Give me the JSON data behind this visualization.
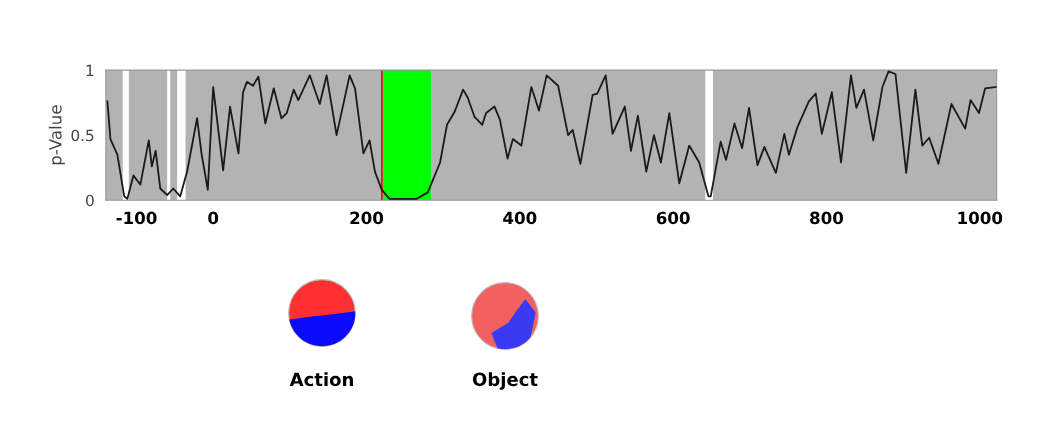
{
  "chart_data": {
    "type": "line",
    "ylabel": "p-Value",
    "xlim": [
      -140,
      1022
    ],
    "ylim": [
      0,
      1
    ],
    "xticks": [
      -100,
      0,
      200,
      400,
      600,
      800,
      1000
    ],
    "yticks": [
      0,
      0.5,
      1
    ],
    "grid": false,
    "legend": false,
    "series": [
      {
        "color": "#1a1a1a",
        "x": [
          -138,
          -134,
          -125,
          -116,
          -112,
          -104,
          -95,
          -84,
          -80,
          -75,
          -69,
          -60,
          -52,
          -43,
          -34,
          -21,
          -15,
          -7,
          0,
          13,
          22,
          33,
          39,
          44,
          52,
          59,
          68,
          79,
          89,
          96,
          105,
          111,
          126,
          139,
          148,
          161,
          178,
          185,
          196,
          204,
          211,
          220,
          230,
          265,
          280,
          296,
          305,
          315,
          326,
          332,
          341,
          351,
          356,
          367,
          374,
          384,
          391,
          402,
          415,
          425,
          435,
          450,
          463,
          469,
          479,
          495,
          501,
          512,
          521,
          537,
          545,
          554,
          565,
          575,
          584,
          595,
          608,
          621,
          634,
          646,
          649,
          662,
          669,
          680,
          690,
          699,
          710,
          719,
          734,
          745,
          751,
          762,
          777,
          786,
          794,
          807,
          819,
          832,
          839,
          849,
          861,
          873,
          881,
          890,
          904,
          916,
          925,
          934,
          946,
          963,
          981,
          988,
          999,
          1007,
          1021
        ],
        "values": [
          0.76,
          0.47,
          0.35,
          0.03,
          0.01,
          0.19,
          0.12,
          0.46,
          0.26,
          0.38,
          0.09,
          0.04,
          0.09,
          0.03,
          0.22,
          0.63,
          0.35,
          0.08,
          0.87,
          0.23,
          0.72,
          0.36,
          0.83,
          0.91,
          0.88,
          0.95,
          0.59,
          0.86,
          0.63,
          0.67,
          0.85,
          0.77,
          0.96,
          0.74,
          0.96,
          0.5,
          0.96,
          0.86,
          0.36,
          0.46,
          0.22,
          0.08,
          0.01,
          0.01,
          0.06,
          0.29,
          0.58,
          0.68,
          0.85,
          0.79,
          0.64,
          0.58,
          0.67,
          0.72,
          0.62,
          0.32,
          0.47,
          0.42,
          0.87,
          0.69,
          0.96,
          0.88,
          0.5,
          0.54,
          0.28,
          0.81,
          0.82,
          0.96,
          0.51,
          0.72,
          0.38,
          0.65,
          0.22,
          0.5,
          0.29,
          0.67,
          0.13,
          0.42,
          0.29,
          0.03,
          0.03,
          0.45,
          0.31,
          0.59,
          0.4,
          0.71,
          0.27,
          0.41,
          0.21,
          0.51,
          0.35,
          0.56,
          0.76,
          0.82,
          0.51,
          0.83,
          0.29,
          0.96,
          0.71,
          0.85,
          0.46,
          0.87,
          0.99,
          0.97,
          0.21,
          0.85,
          0.42,
          0.48,
          0.28,
          0.74,
          0.55,
          0.77,
          0.67,
          0.86,
          0.87
        ]
      }
    ],
    "bands": [
      {
        "axis": "x",
        "from": -118,
        "to": -110,
        "color": "#ffffff"
      },
      {
        "axis": "x",
        "from": -60,
        "to": -56,
        "color": "#ffffff"
      },
      {
        "axis": "x",
        "from": -47,
        "to": -36,
        "color": "#ffffff"
      },
      {
        "axis": "x",
        "from": 642,
        "to": 652,
        "color": "#ffffff"
      },
      {
        "axis": "x",
        "from": 221,
        "to": 284,
        "color": "#00ff00"
      }
    ],
    "ref_lines": [
      {
        "axis": "x",
        "value": 220,
        "color": "#ff0000"
      }
    ],
    "annotations": [
      "Action",
      "Object"
    ]
  }
}
